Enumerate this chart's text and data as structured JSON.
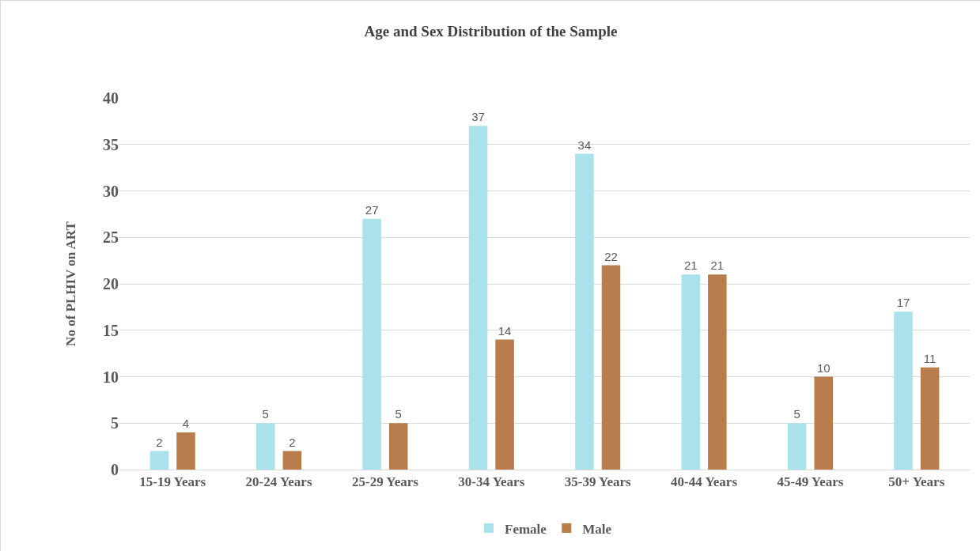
{
  "chart_data": {
    "type": "bar",
    "title": "Age and Sex Distribution of the Sample",
    "ylabel": "No of PLHIV on ART",
    "categories": [
      "15-19 Years",
      "20-24 Years",
      "25-29 Years",
      "30-34 Years",
      "35-39 Years",
      "40-44 Years",
      "45-49 Years",
      "50+ Years"
    ],
    "series": [
      {
        "name": "Female",
        "color": "#a9e2ea",
        "values": [
          2,
          5,
          27,
          37,
          34,
          21,
          5,
          17
        ]
      },
      {
        "name": "Male",
        "color": "#b97c4c",
        "values": [
          4,
          2,
          5,
          14,
          22,
          21,
          10,
          11
        ]
      }
    ],
    "ylim": [
      0,
      40
    ],
    "yticks": [
      0,
      5,
      10,
      15,
      20,
      25,
      30,
      35,
      40
    ],
    "grid": "y",
    "legend": "bottom",
    "data_labels": true
  }
}
